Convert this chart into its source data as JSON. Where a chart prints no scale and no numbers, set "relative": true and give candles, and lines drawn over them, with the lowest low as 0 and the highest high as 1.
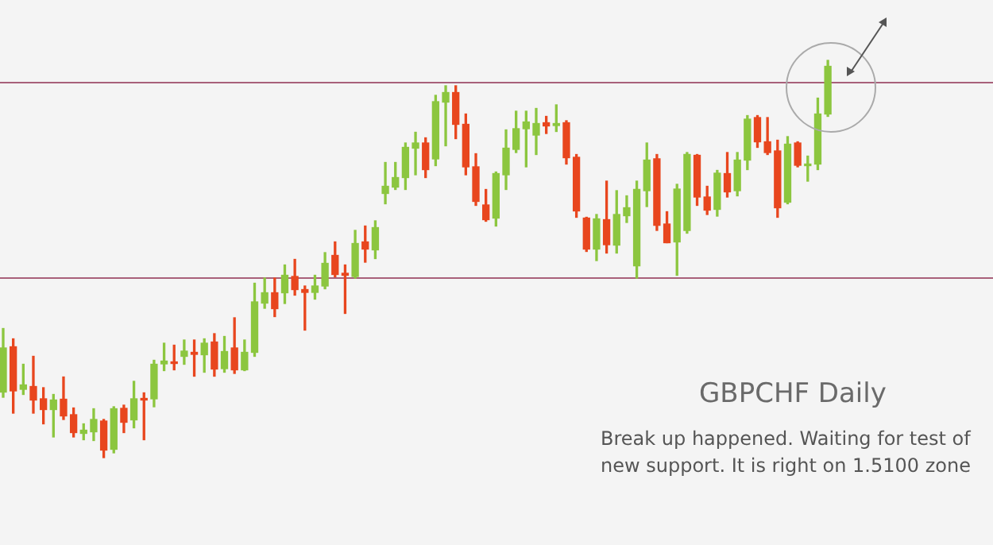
{
  "chart_data": {
    "type": "candlestick",
    "title": "GBPCHF Daily",
    "relative": true,
    "annotations": [
      "Break up happened. Waiting for test of new support. It is right on 1.5100 zone"
    ],
    "categories": [
      null,
      null,
      null,
      null,
      null,
      null,
      null,
      null,
      null,
      null,
      null,
      null,
      null,
      null,
      null,
      null,
      null,
      null,
      null,
      null,
      null,
      null,
      null,
      null,
      null,
      null,
      null,
      null,
      null,
      null,
      null,
      null,
      null,
      null,
      null,
      null,
      null,
      null,
      null,
      null,
      null,
      null,
      null,
      null,
      null,
      null,
      null,
      null,
      null,
      null,
      null,
      null,
      null,
      null,
      null,
      null,
      null,
      null,
      null,
      null,
      null,
      null,
      null,
      null,
      null,
      null,
      null,
      null,
      null,
      null,
      null,
      null,
      null,
      null,
      null,
      null,
      null,
      null,
      null,
      null,
      null,
      null,
      null
    ],
    "ohlc": [
      [
        0.165,
        0.325,
        0.152,
        0.276
      ],
      [
        0.279,
        0.299,
        0.112,
        0.168
      ],
      [
        0.172,
        0.235,
        0.159,
        0.183
      ],
      [
        0.179,
        0.255,
        0.112,
        0.145
      ],
      [
        0.148,
        0.176,
        0.085,
        0.121
      ],
      [
        0.121,
        0.159,
        0.052,
        0.145
      ],
      [
        0.147,
        0.203,
        0.096,
        0.105
      ],
      [
        0.108,
        0.125,
        0.052,
        0.063
      ],
      [
        0.061,
        0.085,
        0.045,
        0.069
      ],
      [
        0.065,
        0.123,
        0.043,
        0.096
      ],
      [
        0.092,
        0.096,
        0,
        0.019
      ],
      [
        0.021,
        0.128,
        0.012,
        0.123
      ],
      [
        0.124,
        0.132,
        0.063,
        0.089
      ],
      [
        0.095,
        0.192,
        0.075,
        0.148
      ],
      [
        0.149,
        0.163,
        0.045,
        0.145
      ],
      [
        0.148,
        0.245,
        0.128,
        0.235
      ],
      [
        0.236,
        0.288,
        0.219,
        0.243
      ],
      [
        0.241,
        0.283,
        0.221,
        0.237
      ],
      [
        0.255,
        0.296,
        0.235,
        0.268
      ],
      [
        0.265,
        0.296,
        0.205,
        0.26
      ],
      [
        0.259,
        0.299,
        0.215,
        0.288
      ],
      [
        0.291,
        0.312,
        0.205,
        0.223
      ],
      [
        0.224,
        0.305,
        0.215,
        0.267
      ],
      [
        0.276,
        0.352,
        0.212,
        0.221
      ],
      [
        0.221,
        0.296,
        0.219,
        0.265
      ],
      [
        0.265,
        0.439,
        0.255,
        0.392
      ],
      [
        0.389,
        0.452,
        0.376,
        0.415
      ],
      [
        0.415,
        0.452,
        0.355,
        0.375
      ],
      [
        0.415,
        0.485,
        0.388,
        0.459
      ],
      [
        0.456,
        0.499,
        0.409,
        0.423
      ],
      [
        0.423,
        0.432,
        0.321,
        0.416
      ],
      [
        0.416,
        0.459,
        0.399,
        0.432
      ],
      [
        0.432,
        0.516,
        0.425,
        0.489
      ],
      [
        0.509,
        0.543,
        0.455,
        0.461
      ],
      [
        0.464,
        0.485,
        0.363,
        0.459
      ],
      [
        0.456,
        0.572,
        0.452,
        0.539
      ],
      [
        0.543,
        0.583,
        0.492,
        0.525
      ],
      [
        0.523,
        0.596,
        0.501,
        0.579
      ],
      [
        0.665,
        0.743,
        0.639,
        0.683
      ],
      [
        0.681,
        0.743,
        0.675,
        0.705
      ],
      [
        0.705,
        0.792,
        0.675,
        0.781
      ],
      [
        0.779,
        0.819,
        0.712,
        0.792
      ],
      [
        0.792,
        0.805,
        0.705,
        0.725
      ],
      [
        0.752,
        0.912,
        0.735,
        0.896
      ],
      [
        0.895,
        0.936,
        0.785,
        0.919
      ],
      [
        0.919,
        0.936,
        0.803,
        0.839
      ],
      [
        0.839,
        0.865,
        0.712,
        0.732
      ],
      [
        0.732,
        0.765,
        0.635,
        0.645
      ],
      [
        0.636,
        0.675,
        0.595,
        0.599
      ],
      [
        0.603,
        0.719,
        0.583,
        0.715
      ],
      [
        0.712,
        0.825,
        0.675,
        0.779
      ],
      [
        0.776,
        0.872,
        0.768,
        0.828
      ],
      [
        0.828,
        0.872,
        0.732,
        0.845
      ],
      [
        0.812,
        0.879,
        0.763,
        0.841
      ],
      [
        0.843,
        0.859,
        0.816,
        0.835
      ],
      [
        0.836,
        0.888,
        0.821,
        0.841
      ],
      [
        0.843,
        0.848,
        0.739,
        0.755
      ],
      [
        0.756,
        0.763,
        0.605,
        0.621
      ],
      [
        0.603,
        0.605,
        0.519,
        0.525
      ],
      [
        0.525,
        0.612,
        0.496,
        0.601
      ],
      [
        0.599,
        0.696,
        0.515,
        0.536
      ],
      [
        0.535,
        0.672,
        0.515,
        0.612
      ],
      [
        0.609,
        0.659,
        0.592,
        0.629
      ],
      [
        0.483,
        0.696,
        0.452,
        0.675
      ],
      [
        0.672,
        0.792,
        0.632,
        0.749
      ],
      [
        0.752,
        0.763,
        0.572,
        0.585
      ],
      [
        0.588,
        0.619,
        0.541,
        0.541
      ],
      [
        0.543,
        0.688,
        0.459,
        0.676
      ],
      [
        0.572,
        0.768,
        0.565,
        0.763
      ],
      [
        0.761,
        0.763,
        0.635,
        0.656
      ],
      [
        0.656,
        0.683,
        0.612,
        0.623
      ],
      [
        0.625,
        0.723,
        0.608,
        0.716
      ],
      [
        0.715,
        0.768,
        0.656,
        0.669
      ],
      [
        0.672,
        0.768,
        0.659,
        0.749
      ],
      [
        0.749,
        0.861,
        0.725,
        0.852
      ],
      [
        0.856,
        0.861,
        0.781,
        0.795
      ],
      [
        0.795,
        0.856,
        0.763,
        0.768
      ],
      [
        0.772,
        0.799,
        0.605,
        0.629
      ],
      [
        0.643,
        0.808,
        0.639,
        0.789
      ],
      [
        0.792,
        0.795,
        0.732,
        0.736
      ],
      [
        0.735,
        0.759,
        0.696,
        0.739
      ],
      [
        0.739,
        0.905,
        0.725,
        0.865
      ],
      [
        0.865,
        1,
        0.859,
        0.985
      ]
    ],
    "colors": [
      "#8cc63f",
      "#e8461e",
      "#8cc63f",
      "#e8461e",
      "#e8461e",
      "#8cc63f",
      "#e8461e",
      "#e8461e",
      "#8cc63f",
      "#8cc63f",
      "#e8461e",
      "#8cc63f",
      "#e8461e",
      "#8cc63f",
      "#e8461e",
      "#8cc63f",
      "#8cc63f",
      "#e8461e",
      "#8cc63f",
      "#e8461e",
      "#8cc63f",
      "#e8461e",
      "#8cc63f",
      "#e8461e",
      "#8cc63f",
      "#8cc63f",
      "#8cc63f",
      "#e8461e",
      "#8cc63f",
      "#e8461e",
      "#e8461e",
      "#8cc63f",
      "#8cc63f",
      "#e8461e",
      "#e8461e",
      "#8cc63f",
      "#e8461e",
      "#8cc63f",
      "#8cc63f",
      "#8cc63f",
      "#8cc63f",
      "#8cc63f",
      "#e8461e",
      "#8cc63f",
      "#8cc63f",
      "#e8461e",
      "#e8461e",
      "#e8461e",
      "#e8461e",
      "#8cc63f",
      "#8cc63f",
      "#8cc63f",
      "#8cc63f",
      "#8cc63f",
      "#e8461e",
      "#8cc63f",
      "#e8461e",
      "#e8461e",
      "#e8461e",
      "#8cc63f",
      "#e8461e",
      "#8cc63f",
      "#8cc63f",
      "#8cc63f",
      "#8cc63f",
      "#e8461e",
      "#e8461e",
      "#8cc63f",
      "#8cc63f",
      "#e8461e",
      "#e8461e",
      "#8cc63f",
      "#e8461e",
      "#8cc63f",
      "#8cc63f",
      "#e8461e",
      "#e8461e",
      "#e8461e",
      "#8cc63f",
      "#e8461e",
      "#8cc63f",
      "#8cc63f",
      "#8cc63f"
    ],
    "ref_lines": [
      {
        "axis": "y",
        "value": 0.944,
        "color": "#a8607a"
      },
      {
        "axis": "y",
        "value": 0.452,
        "color": "#a8607a"
      }
    ]
  }
}
